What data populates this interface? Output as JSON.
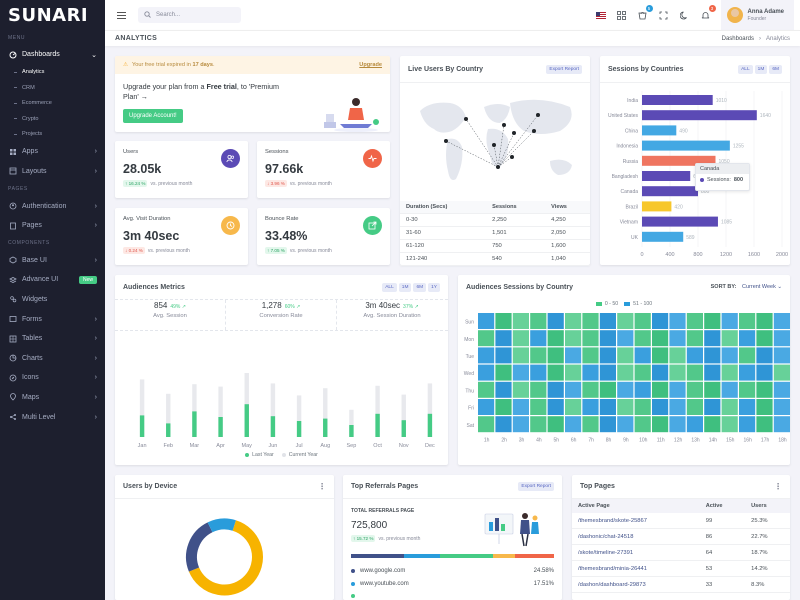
{
  "brand": "SUNARI",
  "sidebar": {
    "menu_title": "MENU",
    "dashboards": "Dashboards",
    "subitems": [
      "Analytics",
      "CRM",
      "Ecommerce",
      "Crypto",
      "Projects"
    ],
    "apps": "Apps",
    "layouts": "Layouts",
    "pages_title": "PAGES",
    "authentication": "Authentication",
    "pages": "Pages",
    "components_title": "COMPONENTS",
    "base_ui": "Base UI",
    "advance_ui": "Advance UI",
    "new_badge": "New",
    "widgets": "Widgets",
    "forms": "Forms",
    "tables": "Tables",
    "charts": "Charts",
    "icons": "Icons",
    "maps": "Maps",
    "multi_level": "Multi Level"
  },
  "topbar": {
    "search_placeholder": "Search...",
    "cart_badge": "5",
    "notif_badge": "3",
    "user_name": "Anna Adame",
    "user_role": "Founder"
  },
  "page": {
    "title": "ANALYTICS",
    "crumb_parent": "Dashboards",
    "crumb_current": "Analytics"
  },
  "trial": {
    "text_pre": "Your free trial expired in ",
    "days": "17 days",
    "text_post": ".",
    "upgrade_link": "Upgrade",
    "headline_pre": "Upgrade your plan from a ",
    "headline_bold": "Free trial",
    "headline_post": ", to 'Premium",
    "headline_line2": "Plan' →",
    "button": "Upgrade Account!"
  },
  "stats": [
    {
      "label": "Users",
      "value": "28.05k",
      "change": "↑ 16.24 %",
      "dir": "up",
      "note": "vs. previous month",
      "icon": "users-icon",
      "color": "#5b4ab5"
    },
    {
      "label": "Sessions",
      "value": "97.66k",
      "change": "↓ 3.96 %",
      "dir": "down",
      "note": "vs. previous month",
      "icon": "activity-icon",
      "color": "#f06548"
    },
    {
      "label": "Avg. Visit Duration",
      "value": "3m 40sec",
      "change": "↓ 0.24 %",
      "dir": "down",
      "note": "vs. previous month",
      "icon": "clock-icon",
      "color": "#f7b84b"
    },
    {
      "label": "Bounce Rate",
      "value": "33.48%",
      "change": "↑ 7.05 %",
      "dir": "up",
      "note": "vs. previous month",
      "icon": "external-link-icon",
      "color": "#45cb85"
    }
  ],
  "live_users": {
    "title": "Live Users By Country",
    "export": "Export Report",
    "columns": [
      "Duration (Secs)",
      "Sessions",
      "Views"
    ],
    "rows": [
      [
        "0-30",
        "2,250",
        "4,250"
      ],
      [
        "31-60",
        "1,501",
        "2,050"
      ],
      [
        "61-120",
        "750",
        "1,600"
      ],
      [
        "121-240",
        "540",
        "1,040"
      ]
    ]
  },
  "sessions_countries": {
    "title": "Sessions by Countries",
    "ranges": [
      "ALL",
      "1M",
      "6M"
    ],
    "tooltip_country": "Canada",
    "tooltip_label": "Sessions:",
    "tooltip_value": "800"
  },
  "audience_metrics": {
    "title": "Audiences Metrics",
    "ranges": [
      "ALL",
      "1M",
      "6M",
      "1Y"
    ],
    "metrics": [
      {
        "value": "854",
        "pct": "49% ↗",
        "label": "Avg. Session"
      },
      {
        "value": "1,278",
        "pct": "60% ↗",
        "label": "Conversion Rate"
      },
      {
        "value": "3m 40sec",
        "pct": "37% ↗",
        "label": "Avg. Session Duration"
      }
    ],
    "legend": [
      "Last Year",
      "Current Year"
    ]
  },
  "audience_sessions": {
    "title": "Audiences Sessions by Country",
    "sort_label": "SORT BY:",
    "sort_value": "Current Week ⌄",
    "legend": [
      "0 - 50",
      "51 - 100"
    ]
  },
  "users_device": {
    "title": "Users by Device"
  },
  "top_referrals": {
    "title": "Top Referrals Pages",
    "export": "Export Report",
    "total_label": "TOTAL REFERRALS PAGE",
    "total_value": "725,800",
    "change": "↑ 15.72 %",
    "note": "vs. previous month",
    "items": [
      {
        "name": "www.google.com",
        "pct": "24.58%",
        "color": "#405189"
      },
      {
        "name": "www.youtube.com",
        "pct": "17.51%",
        "color": "#299cdb"
      },
      {
        "name": "",
        "pct": "",
        "color": "#45cb85"
      }
    ]
  },
  "top_pages": {
    "title": "Top Pages",
    "columns": [
      "Active Page",
      "Active",
      "Users"
    ],
    "rows": [
      [
        "/themesbrand/skote-25867",
        "99",
        "25.3%"
      ],
      [
        "/dashonic/chat-24518",
        "86",
        "22.7%"
      ],
      [
        "/skote/timeline-27391",
        "64",
        "18.7%"
      ],
      [
        "/themesbrand/minia-26441",
        "53",
        "14.2%"
      ],
      [
        "/dashon/dashboard-29873",
        "33",
        "8.3%"
      ]
    ]
  },
  "chart_data": [
    {
      "type": "bar",
      "title": "Sessions by Countries",
      "orientation": "horizontal",
      "categories": [
        "India",
        "United States",
        "China",
        "Indonesia",
        "Russia",
        "Bangladesh",
        "Canada",
        "Brazil",
        "Vietnam",
        "UK"
      ],
      "values": [
        1010,
        1640,
        490,
        1255,
        1050,
        689,
        800,
        420,
        1085,
        589
      ],
      "colors": [
        "#5b4ab5",
        "#5b4ab5",
        "#43a8e3",
        "#43a8e3",
        "#ef7560",
        "#5b4ab5",
        "#5b4ab5",
        "#f7c72c",
        "#5b4ab5",
        "#43a8e3"
      ],
      "xticks": [
        "0",
        "400",
        "800",
        "1200",
        "1600",
        "2000"
      ],
      "xlim": [
        0,
        2000
      ]
    },
    {
      "type": "bar",
      "title": "Audiences Metrics",
      "categories": [
        "Jan",
        "Feb",
        "Mar",
        "Apr",
        "May",
        "Jun",
        "Jul",
        "Aug",
        "Sep",
        "Oct",
        "Nov",
        "Dec"
      ],
      "series": [
        {
          "name": "Last Year",
          "values": [
            27,
            17,
            32,
            25,
            41,
            26,
            20,
            23,
            15,
            29,
            21,
            29
          ],
          "color": "#45cb85"
        },
        {
          "name": "Current Year",
          "values": [
            72,
            54,
            66,
            63,
            80,
            67,
            52,
            61,
            34,
            64,
            53,
            67
          ],
          "color": "#e8e9ed"
        }
      ],
      "ylim": [
        0,
        100
      ]
    },
    {
      "type": "heatmap",
      "title": "Audiences Sessions by Country",
      "rows": [
        "Sun",
        "Mon",
        "Tue",
        "Wed",
        "Thu",
        "Fri",
        "Sat"
      ],
      "cols": [
        "1h",
        "2h",
        "3h",
        "4h",
        "5h",
        "6h",
        "7h",
        "8h",
        "9h",
        "10h",
        "11h",
        "12h",
        "13h",
        "14h",
        "15h",
        "16h",
        "17h",
        "18h"
      ],
      "values": [
        [
          1,
          0,
          0,
          0,
          1,
          0,
          0,
          1,
          0,
          0,
          1,
          1,
          0,
          0,
          1,
          0,
          0,
          1
        ],
        [
          0,
          1,
          0,
          1,
          0,
          0,
          0,
          1,
          1,
          0,
          0,
          1,
          0,
          1,
          0,
          1,
          0,
          1
        ],
        [
          1,
          1,
          0,
          0,
          0,
          1,
          0,
          1,
          0,
          1,
          0,
          0,
          1,
          1,
          1,
          0,
          1,
          1
        ],
        [
          1,
          0,
          1,
          1,
          0,
          0,
          1,
          1,
          0,
          0,
          1,
          0,
          0,
          1,
          0,
          1,
          1,
          0
        ],
        [
          0,
          1,
          0,
          0,
          1,
          1,
          0,
          0,
          1,
          1,
          0,
          1,
          0,
          0,
          1,
          0,
          0,
          1
        ],
        [
          1,
          0,
          1,
          0,
          1,
          0,
          1,
          1,
          0,
          0,
          1,
          1,
          0,
          1,
          0,
          1,
          0,
          1
        ],
        [
          0,
          1,
          1,
          0,
          0,
          1,
          0,
          1,
          1,
          0,
          0,
          1,
          1,
          0,
          0,
          1,
          0,
          1
        ]
      ],
      "legend": [
        "0 - 50",
        "51 - 100"
      ],
      "colors": [
        "#45cb85",
        "#299cdb"
      ]
    },
    {
      "type": "pie",
      "title": "Users by Device",
      "values": [
        64,
        24,
        12
      ],
      "colors": [
        "#f7b300",
        "#405189",
        "#299cdb"
      ]
    }
  ]
}
